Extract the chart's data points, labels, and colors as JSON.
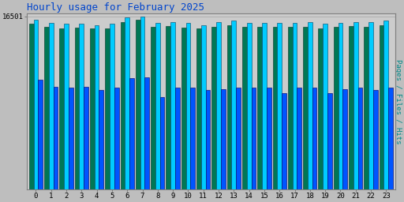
{
  "title": "Hourly usage for February 2025",
  "title_color": "#0044cc",
  "title_fontsize": 9,
  "ylabel_right": "Pages / Files / Hits",
  "ylabel_right_color": "#008888",
  "hours": [
    0,
    1,
    2,
    3,
    4,
    5,
    6,
    7,
    8,
    9,
    10,
    11,
    12,
    13,
    14,
    15,
    16,
    17,
    18,
    19,
    20,
    21,
    22,
    23
  ],
  "hits": [
    16200,
    15900,
    15800,
    15800,
    15700,
    15800,
    16400,
    16501,
    15900,
    16000,
    15900,
    15700,
    16000,
    16100,
    15900,
    15900,
    15900,
    15900,
    15950,
    15800,
    15900,
    16000,
    16000,
    16100
  ],
  "files": [
    15800,
    15500,
    15400,
    15450,
    15400,
    15400,
    16000,
    16200,
    15500,
    15600,
    15450,
    15350,
    15550,
    15650,
    15500,
    15500,
    15500,
    15500,
    15550,
    15400,
    15500,
    15600,
    15550,
    15650
  ],
  "pages": [
    10500,
    9800,
    9700,
    9800,
    9500,
    9700,
    10600,
    10700,
    8800,
    9700,
    9700,
    9500,
    9600,
    9700,
    9700,
    9700,
    9200,
    9700,
    9700,
    9200,
    9600,
    9700,
    9500,
    9700
  ],
  "bar_color_hits": "#00ccff",
  "bar_color_files": "#007755",
  "bar_color_pages": "#0055ff",
  "bar_edge_hits": "#004466",
  "bar_edge_files": "#003322",
  "bar_edge_pages": "#000066",
  "bg_color": "#bebebe",
  "plot_bg_color": "#cccccc",
  "grid_color": "#aaaaaa",
  "tick_color": "#000000",
  "ytick_value": 16501,
  "ytick_label": "16501",
  "ylim_max": 16800
}
